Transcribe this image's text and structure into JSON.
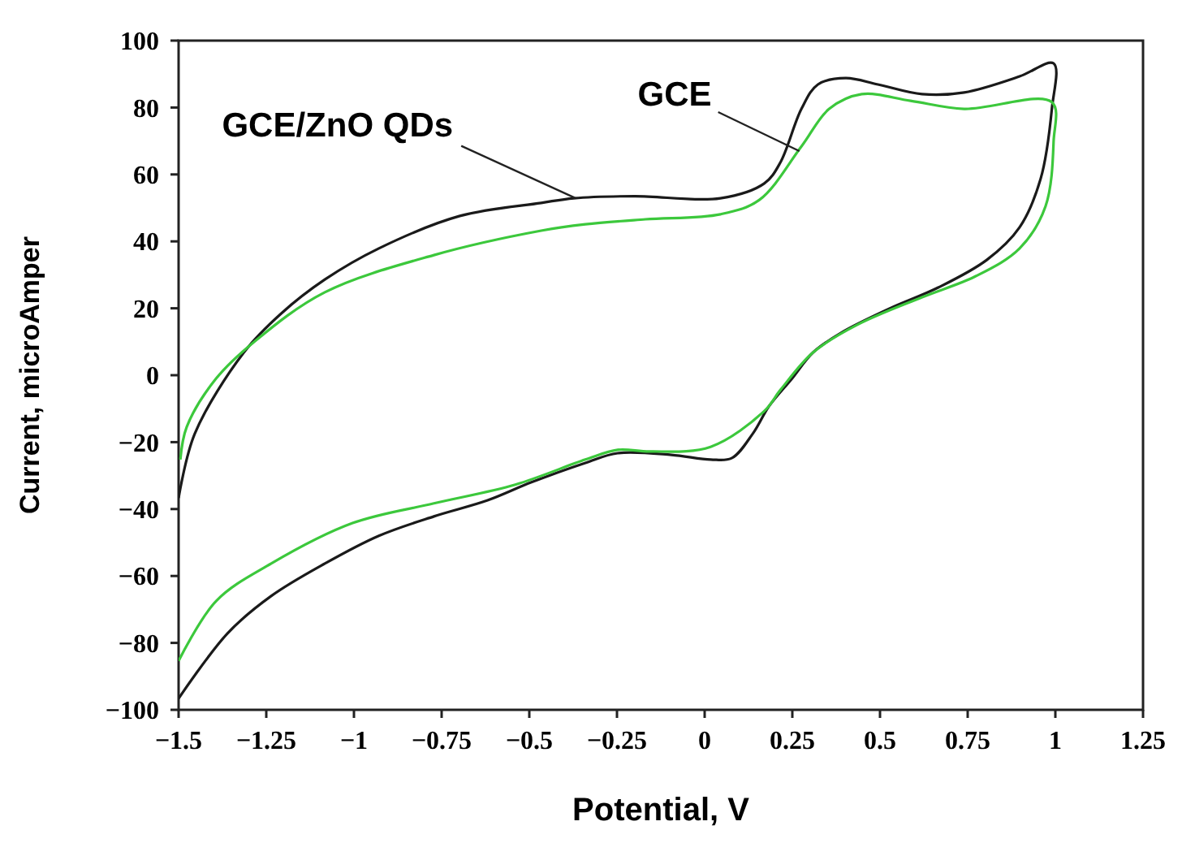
{
  "chart_data": {
    "type": "line",
    "xlabel": "Potential, V",
    "ylabel": "Current, microAmper",
    "xlim": [
      -1.5,
      1.25
    ],
    "ylim": [
      -100,
      100
    ],
    "xticks": [
      {
        "value": -1.5,
        "label": "−1.5"
      },
      {
        "value": -1.25,
        "label": "−1.25"
      },
      {
        "value": -1,
        "label": "−1"
      },
      {
        "value": -0.75,
        "label": "−0.75"
      },
      {
        "value": -0.5,
        "label": "−0.5"
      },
      {
        "value": -0.25,
        "label": "−0.25"
      },
      0,
      0.25,
      0.5,
      0.75,
      1,
      1.25
    ],
    "yticks": [
      {
        "value": -100,
        "label": "−100"
      },
      {
        "value": -80,
        "label": "−80"
      },
      {
        "value": -60,
        "label": "−60"
      },
      {
        "value": -40,
        "label": "−40"
      },
      {
        "value": -20,
        "label": "−20"
      },
      0,
      20,
      40,
      60,
      80,
      100
    ],
    "grid": false,
    "marker": "none",
    "line_style": "solid",
    "annotations": [
      {
        "text": "GCE/ZnO QDs",
        "x": -0.37,
        "y": 53
      },
      {
        "text": "GCE",
        "x": 0.27,
        "y": 67
      }
    ],
    "series": [
      {
        "color": "#1a1a1a",
        "x": [
          -1.5,
          -1.454,
          -1.314,
          -1.208,
          -1.083,
          -0.929,
          -0.698,
          -0.466,
          -0.373,
          -0.2,
          0.045,
          0.17,
          0.216,
          0.276,
          0.323,
          0.402,
          0.494,
          0.62,
          0.74,
          0.898,
          0.995,
          0.99,
          0.958,
          0.898,
          0.805,
          0.666,
          0.527,
          0.388,
          0.309,
          0.249,
          0.184,
          0.137,
          0.077,
          0.017,
          -0.095,
          -0.248,
          -0.34,
          -0.494,
          -0.619,
          -0.772,
          -0.929,
          -1.083,
          -1.236,
          -1.361,
          -1.5
        ],
        "values": [
          -36.7,
          -17.5,
          6.8,
          18.4,
          28.6,
          37.9,
          47.6,
          51.5,
          52.9,
          53.5,
          52.9,
          57.3,
          63.6,
          79.6,
          86.9,
          88.8,
          86.9,
          84,
          84.5,
          89.3,
          93.2,
          79.6,
          58.7,
          44.2,
          34.5,
          26.2,
          19.9,
          12.6,
          6.8,
          -1,
          -9.2,
          -17.5,
          -24.8,
          -25.2,
          -23.8,
          -23.3,
          -26.2,
          -32,
          -37.4,
          -42.2,
          -48,
          -56.3,
          -66,
          -77.2,
          -96.6
        ]
      },
      {
        "color": "#3cc83c",
        "x": [
          -1.495,
          -1.477,
          -1.393,
          -1.282,
          -1.083,
          -0.772,
          -0.466,
          -0.34,
          -0.169,
          0.045,
          0.156,
          0.276,
          0.355,
          0.448,
          0.587,
          0.74,
          0.99,
          0.995,
          0.972,
          0.898,
          0.773,
          0.62,
          0.434,
          0.309,
          0.216,
          0.17,
          0.017,
          -0.155,
          -0.248,
          -0.34,
          -0.54,
          -0.772,
          -1.004,
          -1.236,
          -1.393,
          -1.5
        ],
        "values": [
          -25.2,
          -15.5,
          -1,
          10.2,
          24.8,
          35.9,
          43.2,
          45.1,
          46.6,
          48.1,
          52.4,
          68.4,
          79.6,
          84,
          82,
          79.6,
          81.6,
          69.9,
          50.5,
          37.9,
          29.6,
          23.3,
          15,
          6.8,
          -4.4,
          -10.7,
          -21.4,
          -22.8,
          -22.3,
          -25.2,
          -32.7,
          -38.3,
          -44.2,
          -56.3,
          -67.5,
          -85.4
        ]
      }
    ]
  }
}
